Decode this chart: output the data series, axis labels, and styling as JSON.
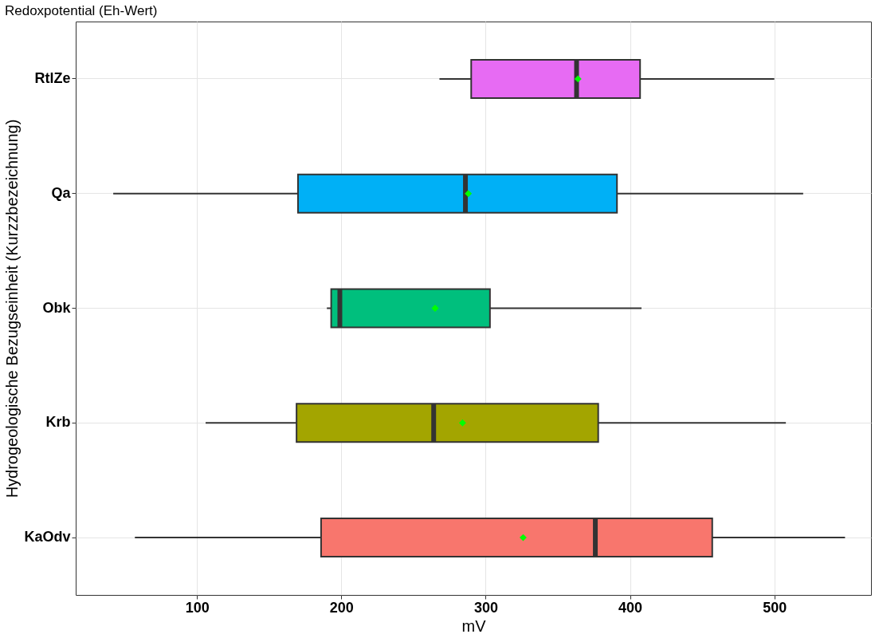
{
  "chart_data": {
    "type": "box",
    "orientation": "horizontal",
    "title": "Redoxpotential (Eh-Wert)",
    "xlabel": "mV",
    "ylabel": "Hydrogeologische Bezugseinheit (Kurzzbezeichnung)",
    "categories": [
      "RtlZe",
      "Qa",
      "Obk",
      "Krb",
      "KaOdv"
    ],
    "colors": [
      "#E76BF3",
      "#00B0F6",
      "#00BF7D",
      "#A3A500",
      "#F8766D"
    ],
    "boxes": [
      {
        "low": 268,
        "q1": 290,
        "median": 363,
        "q3": 407,
        "high": 500,
        "mean": 364
      },
      {
        "low": 42,
        "q1": 170,
        "median": 286,
        "q3": 391,
        "high": 520,
        "mean": 288
      },
      {
        "low": 190,
        "q1": 193,
        "median": 199,
        "q3": 303,
        "high": 408,
        "mean": 265
      },
      {
        "low": 106,
        "q1": 169,
        "median": 264,
        "q3": 378,
        "high": 508,
        "mean": 284
      },
      {
        "low": 57,
        "q1": 186,
        "median": 376,
        "q3": 457,
        "high": 549,
        "mean": 326
      }
    ],
    "xlim": [
      16,
      567
    ],
    "xticks": [
      100,
      200,
      300,
      400,
      500
    ],
    "grid": true,
    "marker": "diamond"
  }
}
